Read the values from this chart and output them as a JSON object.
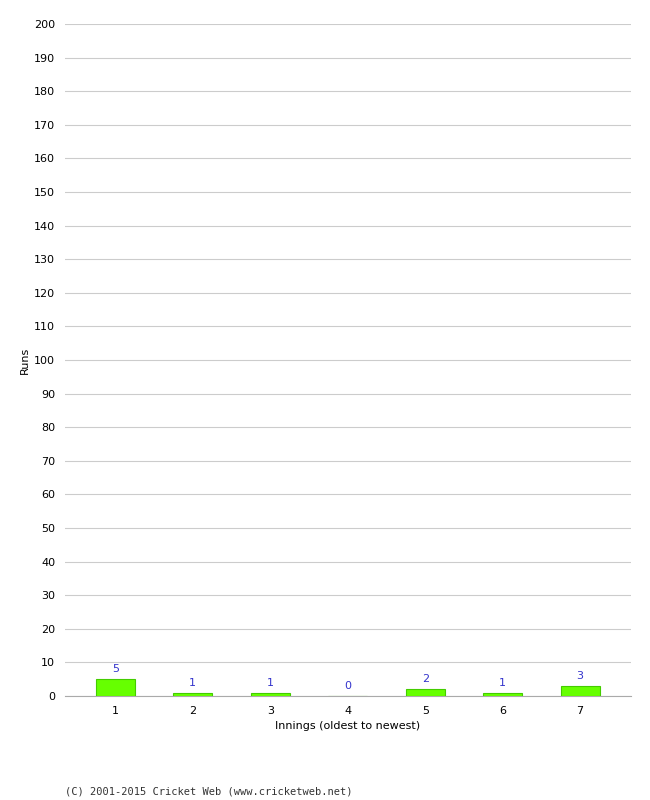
{
  "innings": [
    1,
    2,
    3,
    4,
    5,
    6,
    7
  ],
  "runs": [
    5,
    1,
    1,
    0,
    2,
    1,
    3
  ],
  "bar_color": "#66ff00",
  "bar_edge_color": "#44cc00",
  "label_color": "#3333cc",
  "ylabel": "Runs",
  "xlabel": "Innings (oldest to newest)",
  "footer": "(C) 2001-2015 Cricket Web (www.cricketweb.net)",
  "ylim": [
    0,
    200
  ],
  "ytick_step": 10,
  "background_color": "#ffffff",
  "grid_color": "#cccccc",
  "label_fontsize": 8,
  "axis_fontsize": 8,
  "footer_fontsize": 7.5
}
